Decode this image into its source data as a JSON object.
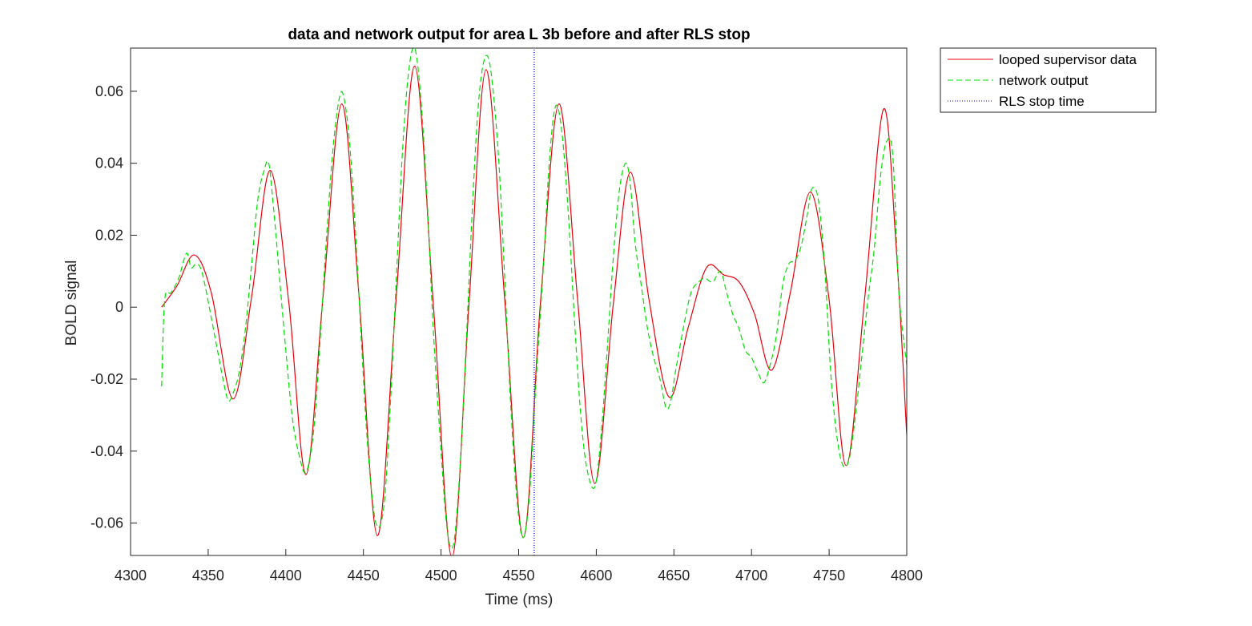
{
  "chart_data": {
    "type": "line",
    "title": "data and network output for area L 3b before and after RLS stop",
    "xlabel": "Time (ms)",
    "ylabel": "BOLD signal",
    "xlim": [
      4300,
      4800
    ],
    "ylim": [
      -0.069,
      0.072
    ],
    "xticks": [
      4300,
      4350,
      4400,
      4450,
      4500,
      4550,
      4600,
      4650,
      4700,
      4750,
      4800
    ],
    "xtick_labels": [
      "4300",
      "4350",
      "4400",
      "4450",
      "4500",
      "4550",
      "4600",
      "4650",
      "4700",
      "4750",
      "4800"
    ],
    "yticks": [
      -0.06,
      -0.04,
      -0.02,
      0,
      0.02,
      0.04,
      0.06
    ],
    "ytick_labels": [
      "-0.06",
      "-0.04",
      "-0.02",
      "0",
      "0.02",
      "0.04",
      "0.06"
    ],
    "grid": false,
    "legend_position": "outside-top-right",
    "series": [
      {
        "name": "looped supervisor data",
        "color": "#e8000b",
        "style": "solid",
        "x": [
          4320,
          4330,
          4341,
          4352,
          4366,
          4378,
          4390,
          4402,
          4413,
          4424,
          4436,
          4447,
          4459,
          4471,
          4483,
          4495,
          4507,
          4518,
          4529,
          4541,
          4553,
          4564,
          4576,
          4588,
          4599,
          4611,
          4622,
          4634,
          4647,
          4659,
          4671,
          4682,
          4692,
          4702,
          4713,
          4725,
          4738,
          4750,
          4761,
          4773,
          4785,
          4793,
          4800
        ],
        "y": [
          0,
          0.006,
          0.0145,
          0.004,
          -0.0255,
          0.003,
          0.038,
          0.001,
          -0.0465,
          0.003,
          0.0565,
          0.004,
          -0.0635,
          0.002,
          0.067,
          0.001,
          -0.0695,
          0.001,
          0.066,
          0.002,
          -0.064,
          0.001,
          0.0565,
          0.002,
          -0.049,
          0.001,
          0.0375,
          0.002,
          -0.025,
          -0.006,
          0.011,
          0.009,
          0.007,
          -0.002,
          -0.0175,
          0.004,
          0.032,
          0.002,
          -0.044,
          0.003,
          0.055,
          0.018,
          -0.0355
        ]
      },
      {
        "name": "network output",
        "color": "#00e000",
        "style": "dashed",
        "x": [
          4320,
          4322,
          4326,
          4331,
          4336,
          4339,
          4342,
          4345,
          4348,
          4352,
          4356,
          4360,
          4363,
          4366,
          4370,
          4374,
          4378,
          4382,
          4386,
          4389,
          4392,
          4396,
          4400,
          4404,
          4408,
          4413,
          4418,
          4422,
          4426,
          4430,
          4434,
          4437,
          4441,
          4445,
          4449,
          4453,
          4458,
          4463,
          4467,
          4471,
          4475,
          4479,
          4483,
          4487,
          4491,
          4495,
          4500,
          4504,
          4508,
          4512,
          4516,
          4520,
          4524,
          4528,
          4532,
          4537,
          4541,
          4545,
          4549,
          4553,
          4557,
          4561,
          4566,
          4570,
          4574,
          4578,
          4582,
          4586,
          4590,
          4594,
          4599,
          4603,
          4607,
          4611,
          4615,
          4619,
          4622,
          4625,
          4629,
          4633,
          4637,
          4641,
          4645,
          4648,
          4651,
          4656,
          4661,
          4666,
          4670,
          4675,
          4680,
          4684,
          4688,
          4692,
          4696,
          4700,
          4704,
          4708,
          4712,
          4716,
          4720,
          4724,
          4728,
          4732,
          4736,
          4739,
          4743,
          4747,
          4751,
          4755,
          4759,
          4763,
          4767,
          4771,
          4775,
          4779,
          4783,
          4787,
          4791,
          4795,
          4800
        ],
        "y": [
          -0.022,
          0.002,
          0.004,
          0.008,
          0.015,
          0.011,
          0.012,
          0.011,
          0.006,
          -0.003,
          -0.012,
          -0.021,
          -0.026,
          -0.024,
          -0.018,
          -0.006,
          0.012,
          0.03,
          0.038,
          0.04,
          0.028,
          0.008,
          -0.012,
          -0.03,
          -0.04,
          -0.046,
          -0.034,
          -0.01,
          0.018,
          0.042,
          0.057,
          0.059,
          0.046,
          0.02,
          -0.012,
          -0.04,
          -0.06,
          -0.056,
          -0.03,
          0.006,
          0.042,
          0.065,
          0.072,
          0.058,
          0.03,
          -0.006,
          -0.04,
          -0.062,
          -0.066,
          -0.046,
          -0.012,
          0.026,
          0.056,
          0.069,
          0.066,
          0.042,
          0.008,
          -0.028,
          -0.054,
          -0.064,
          -0.052,
          -0.022,
          0.012,
          0.042,
          0.056,
          0.048,
          0.026,
          -0.004,
          -0.03,
          -0.045,
          -0.05,
          -0.036,
          -0.012,
          0.014,
          0.033,
          0.04,
          0.034,
          0.018,
          0.006,
          -0.006,
          -0.014,
          -0.02,
          -0.028,
          -0.026,
          -0.018,
          -0.006,
          0.004,
          0.007,
          0.008,
          0.007,
          0.01,
          0.004,
          -0.002,
          -0.006,
          -0.012,
          -0.014,
          -0.018,
          -0.021,
          -0.016,
          -0.008,
          0.006,
          0.012,
          0.013,
          0.017,
          0.026,
          0.033,
          0.03,
          0.012,
          -0.018,
          -0.036,
          -0.044,
          -0.042,
          -0.03,
          -0.014,
          0.002,
          0.016,
          0.036,
          0.046,
          0.042,
          0.004,
          -0.016
        ]
      },
      {
        "name": "RLS stop time",
        "color": "#0000ee",
        "style": "dotted",
        "x": [
          4560,
          4560
        ],
        "y": [
          -0.069,
          0.072
        ]
      }
    ]
  }
}
